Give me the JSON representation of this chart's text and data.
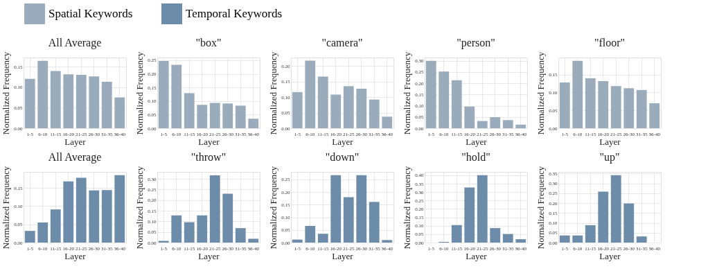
{
  "chart_data": [
    {
      "type": "bar",
      "title": "All Average",
      "xlabel": "Layer",
      "ylabel": "Normalized Frequency",
      "categories": [
        "1-5",
        "6-10",
        "11-15",
        "16-20",
        "21-25",
        "26-30",
        "31-35",
        "36-40"
      ],
      "series": [
        {
          "name": "Spatial Keywords",
          "color": "#9aabbb",
          "values": [
            0.12,
            0.164,
            0.139,
            0.131,
            0.13,
            0.126,
            0.113,
            0.075
          ]
        }
      ],
      "ylim": [
        0,
        0.172
      ],
      "yticks": [
        {
          "value": 0,
          "label": "0.00"
        },
        0.05,
        {
          "value": 0.1,
          "label": "0.10"
        },
        0.15
      ],
      "grid": true,
      "legend": "top"
    },
    {
      "type": "bar",
      "title": "\"box\"",
      "xlabel": "Layer",
      "ylabel": "Normalized Frequency",
      "categories": [
        "1-5",
        "6-10",
        "11-15",
        "16-20",
        "21-25",
        "26-30",
        "31-35",
        "36-40"
      ],
      "series": [
        {
          "color": "#9aabbb",
          "values": [
            0.247,
            0.233,
            0.129,
            0.086,
            0.093,
            0.091,
            0.083,
            0.035
          ]
        }
      ],
      "ylim": [
        0,
        0.26
      ],
      "yticks": [
        {
          "value": 0,
          "label": "0.00"
        },
        0.05,
        {
          "value": 0.1,
          "label": "0.10"
        },
        0.15,
        {
          "value": 0.2,
          "label": "0.20"
        },
        0.25
      ],
      "grid": true
    },
    {
      "type": "bar",
      "title": "\"camera\"",
      "xlabel": "Layer",
      "ylabel": "Normalized Frequency",
      "categories": [
        "1-5",
        "6-10",
        "11-15",
        "16-20",
        "21-25",
        "26-30",
        "31-35",
        "36-40"
      ],
      "series": [
        {
          "color": "#9aabbb",
          "values": [
            0.116,
            0.217,
            0.166,
            0.108,
            0.135,
            0.127,
            0.092,
            0.037
          ]
        }
      ],
      "ylim": [
        0,
        0.227
      ],
      "yticks": [
        {
          "value": 0,
          "label": "0.00"
        },
        0.05,
        {
          "value": 0.1,
          "label": "0.10"
        },
        0.15,
        {
          "value": 0.2,
          "label": "0.20"
        }
      ],
      "grid": true
    },
    {
      "type": "bar",
      "title": "\"person\"",
      "xlabel": "Layer",
      "ylabel": "Normalized Frequency",
      "categories": [
        "1-5",
        "6-10",
        "11-15",
        "16-20",
        "21-25",
        "26-30",
        "31-35",
        "36-40"
      ],
      "series": [
        {
          "color": "#9aabbb",
          "values": [
            0.299,
            0.252,
            0.213,
            0.096,
            0.032,
            0.049,
            0.036,
            0.016
          ]
        }
      ],
      "ylim": [
        0,
        0.314
      ],
      "yticks": [
        {
          "value": 0,
          "label": "0.00"
        },
        0.05,
        {
          "value": 0.1,
          "label": "0.10"
        },
        0.15,
        {
          "value": 0.2,
          "label": "0.20"
        },
        0.25,
        {
          "value": 0.3,
          "label": "0.30"
        }
      ],
      "grid": true
    },
    {
      "type": "bar",
      "title": "\"floor\"",
      "xlabel": "Layer",
      "ylabel": "Normalized Frequency",
      "categories": [
        "1-5",
        "6-10",
        "11-15",
        "16-20",
        "21-25",
        "26-30",
        "31-35",
        "36-40"
      ],
      "series": [
        {
          "color": "#9aabbb",
          "values": [
            0.128,
            0.189,
            0.14,
            0.132,
            0.118,
            0.112,
            0.107,
            0.07
          ]
        }
      ],
      "ylim": [
        0,
        0.198
      ],
      "yticks": [
        {
          "value": 0,
          "label": "0.00"
        },
        0.05,
        {
          "value": 0.1,
          "label": "0.10"
        },
        0.15
      ],
      "grid": true
    },
    {
      "type": "bar",
      "title": "All Average",
      "xlabel": "Layer",
      "ylabel": "Normalized Frequency",
      "categories": [
        "1-5",
        "6-10",
        "11-15",
        "16-20",
        "21-25",
        "26-30",
        "31-35",
        "36-40"
      ],
      "series": [
        {
          "name": "Temporal Keywords",
          "color": "#6d8caa",
          "values": [
            0.032,
            0.055,
            0.091,
            0.168,
            0.178,
            0.143,
            0.144,
            0.185
          ]
        }
      ],
      "ylim": [
        0,
        0.194
      ],
      "yticks": [
        {
          "value": 0,
          "label": "0.00"
        },
        0.05,
        {
          "value": 0.1,
          "label": "0.10"
        },
        0.15
      ],
      "grid": true,
      "legend": "top"
    },
    {
      "type": "bar",
      "title": "\"throw\"",
      "xlabel": "Layer",
      "ylabel": "Normalized Frequency",
      "categories": [
        "1-5",
        "6-10",
        "11-15",
        "16-20",
        "21-25",
        "26-30",
        "31-35",
        "36-40"
      ],
      "series": [
        {
          "color": "#6d8caa",
          "values": [
            0.008,
            0.128,
            0.096,
            0.128,
            0.317,
            0.23,
            0.068,
            0.018
          ]
        }
      ],
      "ylim": [
        0,
        0.333
      ],
      "yticks": [
        {
          "value": 0,
          "label": "0.00"
        },
        0.05,
        {
          "value": 0.1,
          "label": "0.10"
        },
        0.15,
        {
          "value": 0.2,
          "label": "0.20"
        },
        0.25,
        {
          "value": 0.3,
          "label": "0.30"
        }
      ],
      "grid": true
    },
    {
      "type": "bar",
      "title": "\"down\"",
      "xlabel": "Layer",
      "ylabel": "Normalized Frequency",
      "categories": [
        "1-5",
        "6-10",
        "11-15",
        "16-20",
        "21-25",
        "26-30",
        "31-35",
        "36-40"
      ],
      "series": [
        {
          "color": "#6d8caa",
          "values": [
            0.012,
            0.066,
            0.035,
            0.267,
            0.18,
            0.267,
            0.161,
            0.01
          ]
        }
      ],
      "ylim": [
        0,
        0.28
      ],
      "yticks": [
        {
          "value": 0,
          "label": "0.00"
        },
        0.05,
        {
          "value": 0.1,
          "label": "0.10"
        },
        0.15,
        {
          "value": 0.2,
          "label": "0.20"
        },
        0.25
      ],
      "grid": true
    },
    {
      "type": "bar",
      "title": "\"hold\"",
      "xlabel": "Layer",
      "ylabel": "Normalized Frequency",
      "categories": [
        "1-5",
        "6-10",
        "11-15",
        "16-20",
        "21-25",
        "26-30",
        "31-35",
        "36-40"
      ],
      "series": [
        {
          "color": "#6d8caa",
          "values": [
            0,
            0.004,
            0.104,
            0.327,
            0.4,
            0.086,
            0.051,
            0.02
          ]
        }
      ],
      "ylim": [
        0,
        0.42
      ],
      "yticks": [
        {
          "value": 0,
          "label": "0.00"
        },
        0.05,
        {
          "value": 0.1,
          "label": "0.10"
        },
        0.15,
        {
          "value": 0.2,
          "label": "0.20"
        },
        0.25,
        {
          "value": 0.3,
          "label": "0.30"
        },
        0.35,
        {
          "value": 0.4,
          "label": "0.40"
        }
      ],
      "grid": true
    },
    {
      "type": "bar",
      "title": "\"up\"",
      "xlabel": "Layer",
      "ylabel": "Normalized Frequency",
      "categories": [
        "1-5",
        "6-10",
        "11-15",
        "16-20",
        "21-25",
        "26-30",
        "31-35",
        "36-40"
      ],
      "series": [
        {
          "color": "#6d8caa",
          "values": [
            0.036,
            0.036,
            0.088,
            0.258,
            0.341,
            0.198,
            0.031,
            0
          ]
        }
      ],
      "ylim": [
        0,
        0.358
      ],
      "yticks": [
        {
          "value": 0,
          "label": "0.00"
        },
        0.05,
        {
          "value": 0.1,
          "label": "0.10"
        },
        0.15,
        {
          "value": 0.2,
          "label": "0.20"
        },
        0.25,
        {
          "value": 0.3,
          "label": "0.30"
        },
        0.35
      ],
      "grid": true
    }
  ]
}
